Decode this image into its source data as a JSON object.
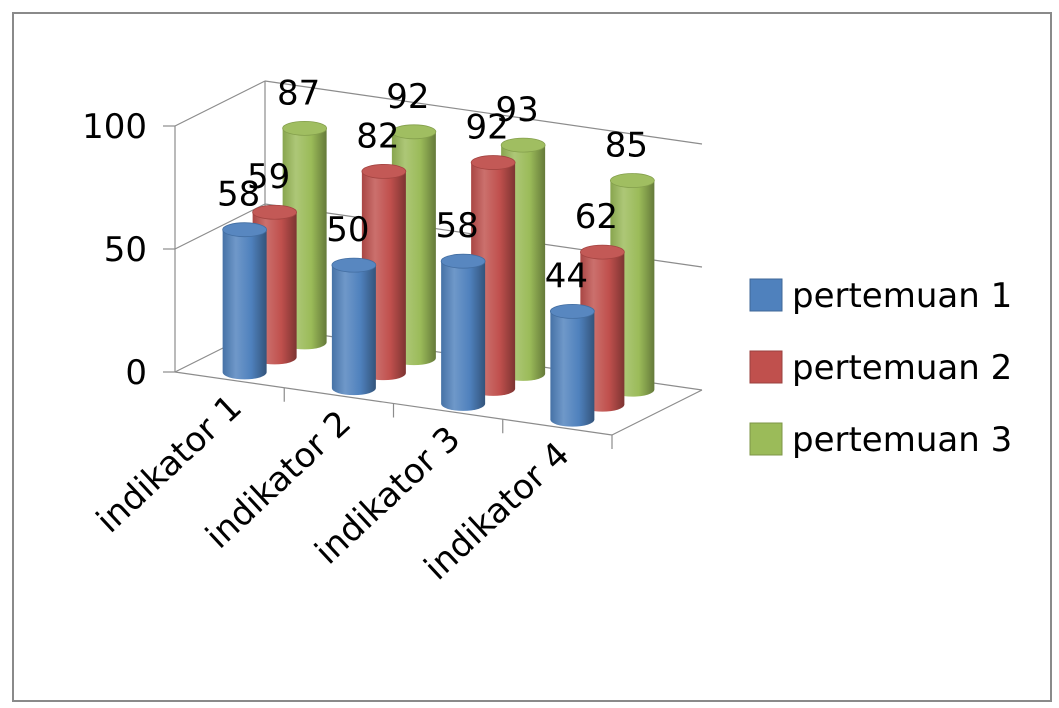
{
  "chart_data": {
    "type": "bar",
    "style": "3d-cylinder",
    "categories": [
      "indikator 1",
      "indikator 2",
      "indikator 3",
      "indikator 4"
    ],
    "series": [
      {
        "name": "pertemuan 1",
        "values": [
          58,
          50,
          58,
          44
        ],
        "color": "#4F81BD"
      },
      {
        "name": "pertemuan 2",
        "values": [
          59,
          82,
          92,
          62
        ],
        "color": "#C0504D"
      },
      {
        "name": "pertemuan 3",
        "values": [
          87,
          92,
          93,
          85
        ],
        "color": "#9BBB59"
      }
    ],
    "ylim": [
      0,
      100
    ],
    "yticks": [
      0,
      50,
      100
    ],
    "ytick_labels": [
      "0",
      "50",
      "100"
    ],
    "grid": true,
    "legend": "right"
  }
}
